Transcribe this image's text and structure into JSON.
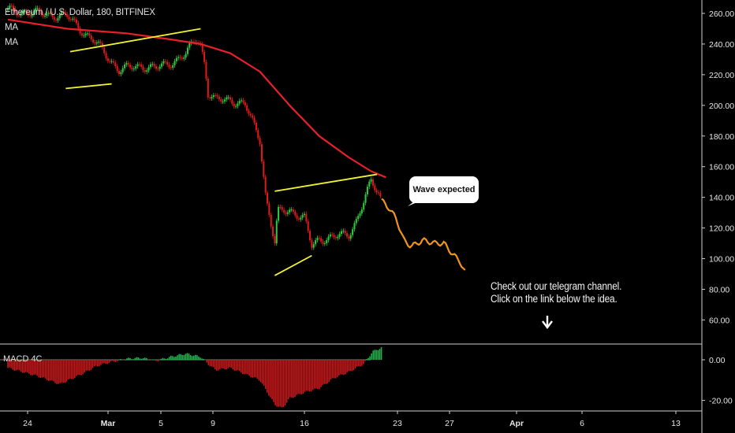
{
  "header": {
    "symbol": "Ethereum / U.S. Dollar, 180, BITFINEX",
    "ma_labels": [
      "MA",
      "MA"
    ]
  },
  "indicator": {
    "label": "MACD 4C"
  },
  "annotations": {
    "callout": "Wave expected",
    "note_lines": [
      "Check out our telegram channel.",
      "Click on the link below the idea."
    ]
  },
  "colors": {
    "up": "#2ecc40",
    "down": "#e01a1a",
    "ma": "#e8202a",
    "trendline": "#f2f230",
    "projection": "#f0941e",
    "macd_pos": "#22b14c",
    "macd_neg": "#c8191c"
  },
  "chart_data": [
    {
      "type": "line",
      "title": "Ethereum / U.S. Dollar, 180, BITFINEX",
      "x_ticks": [
        "24",
        "Mar",
        "5",
        "9",
        "16",
        "23",
        "27",
        "Apr",
        "6",
        "13"
      ],
      "y_ticks": [
        "260.00",
        "240.00",
        "220.00",
        "200.00",
        "180.00",
        "160.00",
        "140.00",
        "120.00",
        "100.00",
        "80.00",
        "60.00"
      ],
      "ylim": [
        40,
        268
      ],
      "price_path": [
        [
          0,
          262
        ],
        [
          4,
          258
        ],
        [
          6,
          240
        ],
        [
          7.5,
          223
        ],
        [
          9,
          226
        ],
        [
          10,
          224
        ],
        [
          11,
          228
        ],
        [
          12,
          233
        ],
        [
          12.7,
          244
        ],
        [
          13,
          240
        ],
        [
          13.3,
          226
        ],
        [
          13.5,
          208
        ],
        [
          14,
          203
        ],
        [
          15,
          204
        ],
        [
          16,
          200
        ],
        [
          17,
          178
        ],
        [
          17.4,
          140
        ],
        [
          17.8,
          120
        ],
        [
          18,
          110
        ],
        [
          18.2,
          130
        ],
        [
          19,
          132
        ],
        [
          20,
          126
        ],
        [
          20.5,
          108
        ],
        [
          21,
          113
        ],
        [
          22,
          114
        ],
        [
          23,
          116
        ],
        [
          23.5,
          125
        ],
        [
          24,
          137
        ],
        [
          24.5,
          150
        ],
        [
          25,
          143
        ],
        [
          25.2,
          138
        ]
      ],
      "projection_path": [
        [
          25.2,
          138
        ],
        [
          25.7,
          133
        ],
        [
          26.2,
          126
        ],
        [
          26.7,
          112
        ],
        [
          27.2,
          108
        ],
        [
          28,
          112
        ],
        [
          28.8,
          110
        ],
        [
          29.4,
          110
        ],
        [
          30,
          103
        ],
        [
          30.5,
          98
        ],
        [
          30.9,
          90
        ]
      ],
      "moving_average": [
        [
          0,
          256
        ],
        [
          4,
          250
        ],
        [
          8,
          247
        ],
        [
          11,
          243
        ],
        [
          13,
          240
        ],
        [
          15,
          234
        ],
        [
          17,
          222
        ],
        [
          19,
          200
        ],
        [
          21,
          180
        ],
        [
          23,
          166
        ],
        [
          24.5,
          157
        ],
        [
          25.5,
          153
        ]
      ],
      "trendlines": [
        [
          [
            4.2,
            235
          ],
          [
            13,
            250
          ]
        ],
        [
          [
            3.9,
            211
          ],
          [
            7,
            214
          ]
        ],
        [
          [
            18,
            144
          ],
          [
            24.9,
            155
          ]
        ],
        [
          [
            18,
            89
          ],
          [
            20.5,
            102
          ]
        ]
      ]
    },
    {
      "type": "bar",
      "title": "MACD 4C",
      "y_ticks": [
        "0.00",
        "-20.00"
      ],
      "ylim": [
        -25,
        8
      ],
      "histogram": [
        [
          0,
          -4
        ],
        [
          2,
          -8
        ],
        [
          3.5,
          -12
        ],
        [
          5,
          -7
        ],
        [
          6,
          -3
        ],
        [
          7,
          -1
        ],
        [
          8,
          0.5
        ],
        [
          9,
          1
        ],
        [
          10,
          -0.5
        ],
        [
          11,
          1.5
        ],
        [
          12,
          3
        ],
        [
          13,
          1.5
        ],
        [
          13.5,
          -2
        ],
        [
          14,
          -5
        ],
        [
          15,
          -4
        ],
        [
          16,
          -7
        ],
        [
          17,
          -10
        ],
        [
          18,
          -22
        ],
        [
          18.5,
          -24
        ],
        [
          19,
          -19
        ],
        [
          20,
          -16
        ],
        [
          21,
          -14
        ],
        [
          22,
          -9
        ],
        [
          23,
          -6
        ],
        [
          24,
          -2
        ],
        [
          24.6,
          4
        ],
        [
          25.2,
          6
        ]
      ]
    }
  ]
}
